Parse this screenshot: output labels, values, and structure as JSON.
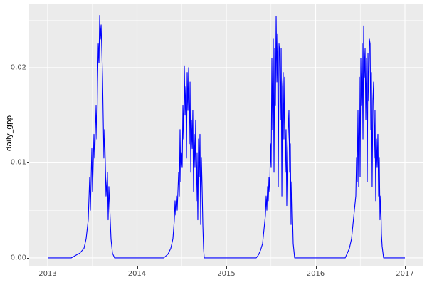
{
  "figure": {
    "background": "#FFFFFF",
    "panel_background": "#EBEBEB",
    "grid_color": "#FFFFFF",
    "tick_mark_color": "#333333",
    "tick_label_color": "#4D4D4D",
    "axis_title_color": "#000000"
  },
  "chart_data": {
    "type": "line",
    "title": "",
    "xlabel": "",
    "ylabel": "daily_gpp",
    "legend": "none",
    "grid": "on",
    "x_range": [
      2012.7928,
      2017.1992
    ],
    "y_range": [
      -0.0009,
      0.02674
    ],
    "x_ticks": [
      {
        "value": 2013,
        "label": "2013"
      },
      {
        "value": 2014,
        "label": "2014"
      },
      {
        "value": 2015,
        "label": "2015"
      },
      {
        "value": 2016,
        "label": "2016"
      },
      {
        "value": 2017,
        "label": "2017"
      }
    ],
    "x_minor_ticks": [
      2013.5,
      2014.5,
      2015.5,
      2016.5
    ],
    "y_ticks": [
      {
        "value": 0.0,
        "label": "0.00"
      },
      {
        "value": 0.01,
        "label": "0.01"
      },
      {
        "value": 0.02,
        "label": "0.02"
      }
    ],
    "y_minor_ticks": [
      0.005,
      0.015,
      0.025
    ],
    "series": [
      {
        "name": "daily_gpp",
        "color": "#0000FF",
        "points": [
          [
            2013.0,
            0
          ],
          [
            2013.1,
            0
          ],
          [
            2013.2,
            0
          ],
          [
            2013.263,
            0
          ],
          [
            2013.319,
            0.0003
          ],
          [
            2013.359,
            0.0005
          ],
          [
            2013.406,
            0.001
          ],
          [
            2013.43,
            0.002
          ],
          [
            2013.454,
            0.004
          ],
          [
            2013.47,
            0.0085
          ],
          [
            2013.478,
            0.005
          ],
          [
            2013.494,
            0.0115
          ],
          [
            2013.502,
            0.007
          ],
          [
            2013.518,
            0.013
          ],
          [
            2013.526,
            0.0105
          ],
          [
            2013.542,
            0.016
          ],
          [
            2013.55,
            0.0125
          ],
          [
            2013.558,
            0.0185
          ],
          [
            2013.566,
            0.0225
          ],
          [
            2013.574,
            0.0205
          ],
          [
            2013.582,
            0.0255
          ],
          [
            2013.59,
            0.023
          ],
          [
            2013.598,
            0.0245
          ],
          [
            2013.614,
            0.019
          ],
          [
            2013.629,
            0.0105
          ],
          [
            2013.637,
            0.0135
          ],
          [
            2013.653,
            0.0065
          ],
          [
            2013.669,
            0.009
          ],
          [
            2013.677,
            0.004
          ],
          [
            2013.685,
            0.0075
          ],
          [
            2013.709,
            0.002
          ],
          [
            2013.725,
            0.0005
          ],
          [
            2013.749,
            0
          ],
          [
            2013.9,
            0
          ],
          [
            2014.1,
            0
          ],
          [
            2014.299,
            0
          ],
          [
            2014.347,
            0.0004
          ],
          [
            2014.378,
            0.001
          ],
          [
            2014.402,
            0.002
          ],
          [
            2014.418,
            0.004
          ],
          [
            2014.426,
            0.006
          ],
          [
            2014.434,
            0.0045
          ],
          [
            2014.442,
            0.0065
          ],
          [
            2014.45,
            0.005
          ],
          [
            2014.466,
            0.009
          ],
          [
            2014.474,
            0.0065
          ],
          [
            2014.482,
            0.0135
          ],
          [
            2014.49,
            0.008
          ],
          [
            2014.498,
            0.011
          ],
          [
            2014.506,
            0.0095
          ],
          [
            2014.514,
            0.016
          ],
          [
            2014.522,
            0.0125
          ],
          [
            2014.53,
            0.0202
          ],
          [
            2014.538,
            0.015
          ],
          [
            2014.546,
            0.018
          ],
          [
            2014.554,
            0.0105
          ],
          [
            2014.562,
            0.0195
          ],
          [
            2014.57,
            0.0155
          ],
          [
            2014.578,
            0.02
          ],
          [
            2014.586,
            0.012
          ],
          [
            2014.594,
            0.0185
          ],
          [
            2014.602,
            0.009
          ],
          [
            2014.61,
            0.0145
          ],
          [
            2014.618,
            0.0115
          ],
          [
            2014.625,
            0.0155
          ],
          [
            2014.633,
            0.007
          ],
          [
            2014.641,
            0.013
          ],
          [
            2014.649,
            0.0095
          ],
          [
            2014.657,
            0.0145
          ],
          [
            2014.665,
            0.006
          ],
          [
            2014.673,
            0.011
          ],
          [
            2014.681,
            0.004
          ],
          [
            2014.689,
            0.0125
          ],
          [
            2014.697,
            0.0085
          ],
          [
            2014.705,
            0.013
          ],
          [
            2014.713,
            0.0035
          ],
          [
            2014.721,
            0.0105
          ],
          [
            2014.729,
            0.0075
          ],
          [
            2014.737,
            0.0035
          ],
          [
            2014.745,
            0.001
          ],
          [
            2014.753,
            0
          ],
          [
            2014.9,
            0
          ],
          [
            2015.1,
            0
          ],
          [
            2015.335,
            0
          ],
          [
            2015.359,
            0.0003
          ],
          [
            2015.383,
            0.0008
          ],
          [
            2015.406,
            0.0015
          ],
          [
            2015.422,
            0.003
          ],
          [
            2015.438,
            0.0045
          ],
          [
            2015.446,
            0.0065
          ],
          [
            2015.454,
            0.005
          ],
          [
            2015.462,
            0.0075
          ],
          [
            2015.47,
            0.006
          ],
          [
            2015.478,
            0.0085
          ],
          [
            2015.486,
            0.007
          ],
          [
            2015.494,
            0.012
          ],
          [
            2015.502,
            0.0095
          ],
          [
            2015.51,
            0.021
          ],
          [
            2015.518,
            0.0135
          ],
          [
            2015.526,
            0.023
          ],
          [
            2015.534,
            0.009
          ],
          [
            2015.542,
            0.022
          ],
          [
            2015.55,
            0.016
          ],
          [
            2015.558,
            0.0254
          ],
          [
            2015.566,
            0.0185
          ],
          [
            2015.574,
            0.0235
          ],
          [
            2015.582,
            0.0075
          ],
          [
            2015.59,
            0.0225
          ],
          [
            2015.598,
            0.0215
          ],
          [
            2015.606,
            0.0145
          ],
          [
            2015.614,
            0.022
          ],
          [
            2015.622,
            0.0065
          ],
          [
            2015.629,
            0.018
          ],
          [
            2015.637,
            0.0195
          ],
          [
            2015.645,
            0.0125
          ],
          [
            2015.653,
            0.019
          ],
          [
            2015.661,
            0.009
          ],
          [
            2015.669,
            0.0135
          ],
          [
            2015.677,
            0.0055
          ],
          [
            2015.685,
            0.011
          ],
          [
            2015.693,
            0.0135
          ],
          [
            2015.701,
            0.0155
          ],
          [
            2015.709,
            0.009
          ],
          [
            2015.717,
            0.012
          ],
          [
            2015.725,
            0.0035
          ],
          [
            2015.733,
            0.008
          ],
          [
            2015.741,
            0.0045
          ],
          [
            2015.749,
            0.0015
          ],
          [
            2015.765,
            0
          ],
          [
            2015.9,
            0
          ],
          [
            2016.1,
            0
          ],
          [
            2016.331,
            0
          ],
          [
            2016.355,
            0.0005
          ],
          [
            2016.378,
            0.001
          ],
          [
            2016.402,
            0.002
          ],
          [
            2016.418,
            0.0035
          ],
          [
            2016.434,
            0.005
          ],
          [
            2016.45,
            0.0065
          ],
          [
            2016.458,
            0.0105
          ],
          [
            2016.466,
            0.008
          ],
          [
            2016.474,
            0.0155
          ],
          [
            2016.482,
            0.0075
          ],
          [
            2016.49,
            0.019
          ],
          [
            2016.498,
            0.0085
          ],
          [
            2016.506,
            0.021
          ],
          [
            2016.514,
            0.016
          ],
          [
            2016.522,
            0.0225
          ],
          [
            2016.53,
            0.0125
          ],
          [
            2016.538,
            0.0244
          ],
          [
            2016.546,
            0.019
          ],
          [
            2016.554,
            0.022
          ],
          [
            2016.562,
            0.0145
          ],
          [
            2016.57,
            0.021
          ],
          [
            2016.578,
            0.008
          ],
          [
            2016.586,
            0.0215
          ],
          [
            2016.594,
            0.0165
          ],
          [
            2016.602,
            0.023
          ],
          [
            2016.61,
            0.0225
          ],
          [
            2016.618,
            0.0135
          ],
          [
            2016.625,
            0.0195
          ],
          [
            2016.633,
            0.0075
          ],
          [
            2016.641,
            0.0165
          ],
          [
            2016.649,
            0.0185
          ],
          [
            2016.657,
            0.0105
          ],
          [
            2016.665,
            0.0155
          ],
          [
            2016.673,
            0.006
          ],
          [
            2016.681,
            0.0125
          ],
          [
            2016.689,
            0.0095
          ],
          [
            2016.697,
            0.013
          ],
          [
            2016.705,
            0.0065
          ],
          [
            2016.713,
            0.0105
          ],
          [
            2016.721,
            0.004
          ],
          [
            2016.729,
            0.0065
          ],
          [
            2016.737,
            0.0025
          ],
          [
            2016.745,
            0.0012
          ],
          [
            2016.761,
            0
          ],
          [
            2016.9,
            0
          ],
          [
            2017.0,
            0
          ]
        ]
      }
    ]
  }
}
